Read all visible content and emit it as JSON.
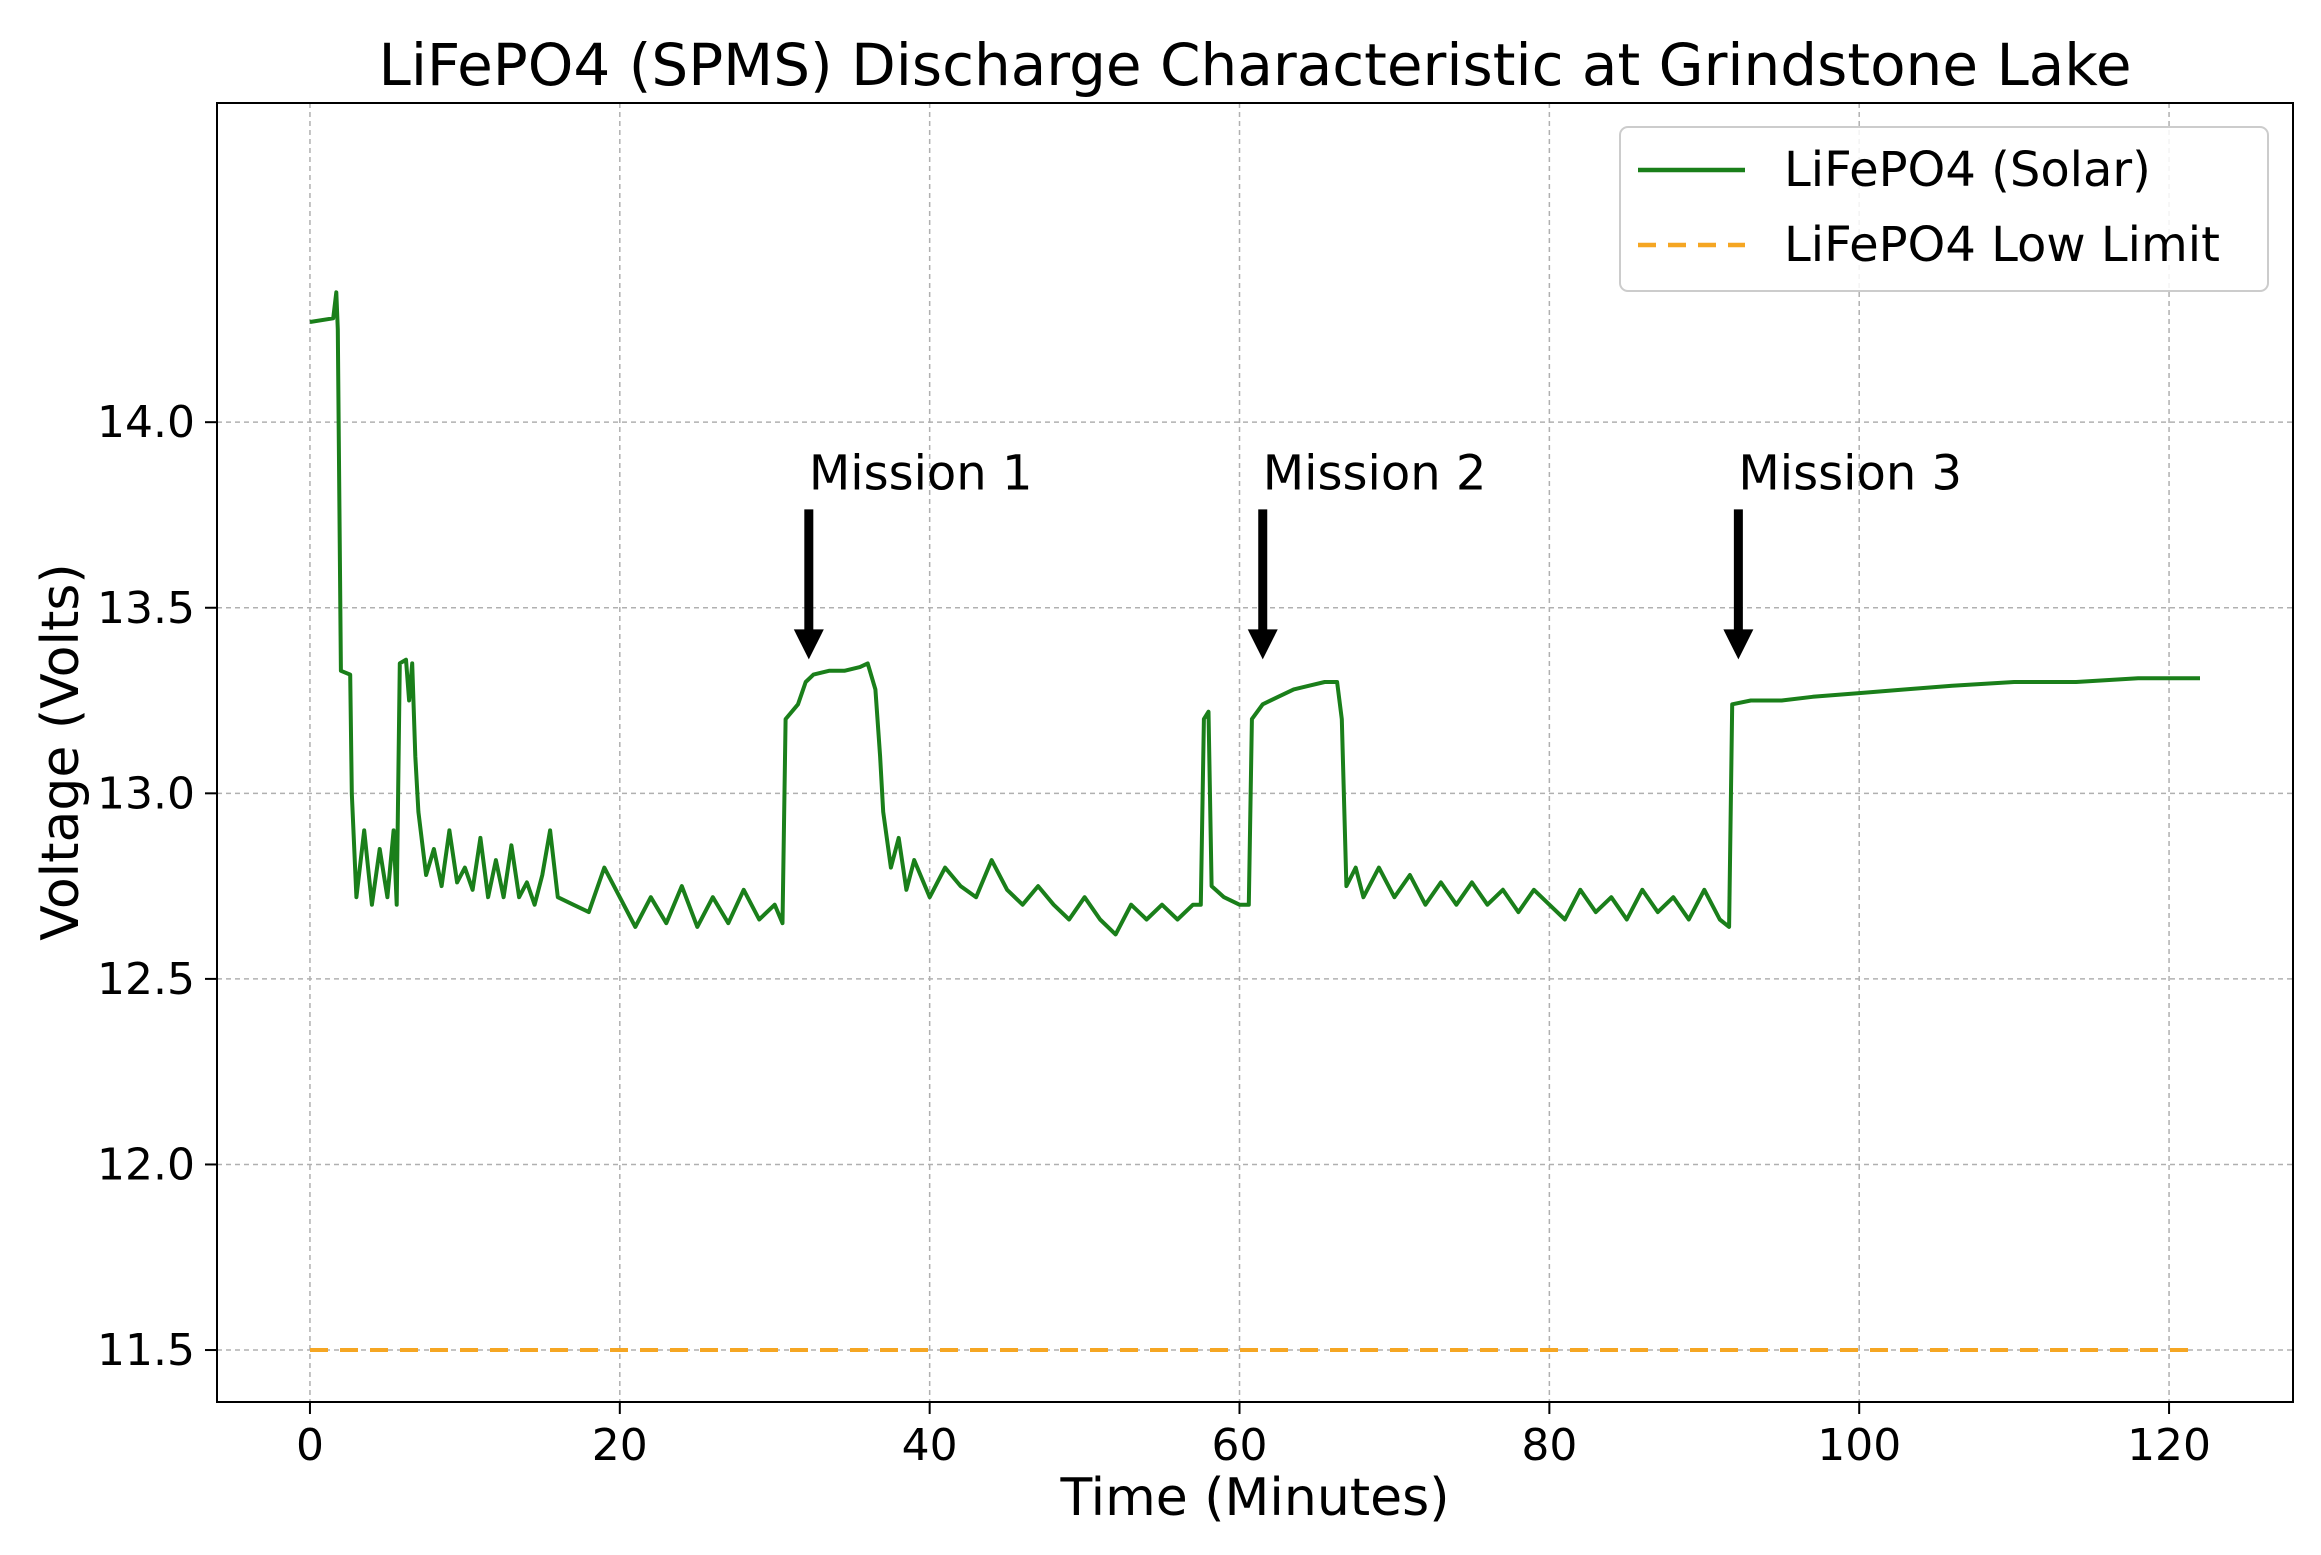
{
  "chart_data": {
    "type": "line",
    "title": "LiFePO4 (SPMS) Discharge Characteristic at Grindstone Lake",
    "xlabel": "Time (Minutes)",
    "ylabel": "Voltage (Volts)",
    "xlim": [
      -6,
      128
    ],
    "ylim": [
      11.36,
      14.86
    ],
    "xticks": [
      0,
      20,
      40,
      60,
      80,
      100,
      120
    ],
    "yticks": [
      11.5,
      12.0,
      12.5,
      13.0,
      13.5,
      14.0
    ],
    "xtick_labels": [
      "0",
      "20",
      "40",
      "60",
      "80",
      "100",
      "120"
    ],
    "ytick_labels": [
      "11.5",
      "12.0",
      "12.5",
      "13.0",
      "13.5",
      "14.0"
    ],
    "grid": true,
    "legend_position": "top-right",
    "series": [
      {
        "name": "LiFePO4 (Solar)",
        "color": "#1a7f1a",
        "style": "solid",
        "points": [
          [
            0.0,
            14.27
          ],
          [
            1.5,
            14.28
          ],
          [
            1.7,
            14.35
          ],
          [
            1.8,
            14.25
          ],
          [
            2.0,
            13.33
          ],
          [
            2.6,
            13.32
          ],
          [
            2.7,
            13.0
          ],
          [
            3.0,
            12.72
          ],
          [
            3.5,
            12.9
          ],
          [
            4.0,
            12.7
          ],
          [
            4.5,
            12.85
          ],
          [
            5.0,
            12.72
          ],
          [
            5.4,
            12.9
          ],
          [
            5.6,
            12.7
          ],
          [
            5.8,
            13.35
          ],
          [
            6.2,
            13.36
          ],
          [
            6.4,
            13.25
          ],
          [
            6.6,
            13.35
          ],
          [
            6.8,
            13.1
          ],
          [
            7.0,
            12.95
          ],
          [
            7.5,
            12.78
          ],
          [
            8.0,
            12.85
          ],
          [
            8.5,
            12.75
          ],
          [
            9.0,
            12.9
          ],
          [
            9.5,
            12.76
          ],
          [
            10.0,
            12.8
          ],
          [
            10.5,
            12.74
          ],
          [
            11.0,
            12.88
          ],
          [
            11.5,
            12.72
          ],
          [
            12.0,
            12.82
          ],
          [
            12.5,
            12.72
          ],
          [
            13.0,
            12.86
          ],
          [
            13.5,
            12.72
          ],
          [
            14.0,
            12.76
          ],
          [
            14.5,
            12.7
          ],
          [
            15.0,
            12.78
          ],
          [
            15.5,
            12.9
          ],
          [
            16.0,
            12.72
          ],
          [
            17.0,
            12.7
          ],
          [
            18.0,
            12.68
          ],
          [
            19.0,
            12.8
          ],
          [
            20.0,
            12.72
          ],
          [
            21.0,
            12.64
          ],
          [
            22.0,
            12.72
          ],
          [
            23.0,
            12.65
          ],
          [
            24.0,
            12.75
          ],
          [
            25.0,
            12.64
          ],
          [
            26.0,
            12.72
          ],
          [
            27.0,
            12.65
          ],
          [
            28.0,
            12.74
          ],
          [
            29.0,
            12.66
          ],
          [
            30.0,
            12.7
          ],
          [
            30.5,
            12.65
          ],
          [
            30.7,
            13.2
          ],
          [
            31.5,
            13.24
          ],
          [
            32.0,
            13.3
          ],
          [
            32.5,
            13.32
          ],
          [
            33.5,
            13.33
          ],
          [
            34.5,
            13.33
          ],
          [
            35.5,
            13.34
          ],
          [
            36.0,
            13.35
          ],
          [
            36.5,
            13.28
          ],
          [
            36.8,
            13.1
          ],
          [
            37.0,
            12.95
          ],
          [
            37.5,
            12.8
          ],
          [
            38.0,
            12.88
          ],
          [
            38.5,
            12.74
          ],
          [
            39.0,
            12.82
          ],
          [
            40.0,
            12.72
          ],
          [
            41.0,
            12.8
          ],
          [
            42.0,
            12.75
          ],
          [
            43.0,
            12.72
          ],
          [
            44.0,
            12.82
          ],
          [
            45.0,
            12.74
          ],
          [
            46.0,
            12.7
          ],
          [
            47.0,
            12.75
          ],
          [
            48.0,
            12.7
          ],
          [
            49.0,
            12.66
          ],
          [
            50.0,
            12.72
          ],
          [
            51.0,
            12.66
          ],
          [
            52.0,
            12.62
          ],
          [
            53.0,
            12.7
          ],
          [
            54.0,
            12.66
          ],
          [
            55.0,
            12.7
          ],
          [
            56.0,
            12.66
          ],
          [
            57.0,
            12.7
          ],
          [
            57.5,
            12.7
          ],
          [
            57.7,
            13.2
          ],
          [
            58.0,
            13.22
          ],
          [
            58.2,
            12.75
          ],
          [
            59.0,
            12.72
          ],
          [
            60.0,
            12.7
          ],
          [
            60.6,
            12.7
          ],
          [
            60.8,
            13.2
          ],
          [
            61.5,
            13.24
          ],
          [
            62.5,
            13.26
          ],
          [
            63.5,
            13.28
          ],
          [
            64.5,
            13.29
          ],
          [
            65.5,
            13.3
          ],
          [
            66.3,
            13.3
          ],
          [
            66.6,
            13.2
          ],
          [
            66.9,
            12.75
          ],
          [
            67.5,
            12.8
          ],
          [
            68.0,
            12.72
          ],
          [
            69.0,
            12.8
          ],
          [
            70.0,
            12.72
          ],
          [
            71.0,
            12.78
          ],
          [
            72.0,
            12.7
          ],
          [
            73.0,
            12.76
          ],
          [
            74.0,
            12.7
          ],
          [
            75.0,
            12.76
          ],
          [
            76.0,
            12.7
          ],
          [
            77.0,
            12.74
          ],
          [
            78.0,
            12.68
          ],
          [
            79.0,
            12.74
          ],
          [
            80.0,
            12.7
          ],
          [
            81.0,
            12.66
          ],
          [
            82.0,
            12.74
          ],
          [
            83.0,
            12.68
          ],
          [
            84.0,
            12.72
          ],
          [
            85.0,
            12.66
          ],
          [
            86.0,
            12.74
          ],
          [
            87.0,
            12.68
          ],
          [
            88.0,
            12.72
          ],
          [
            89.0,
            12.66
          ],
          [
            90.0,
            12.74
          ],
          [
            91.0,
            12.66
          ],
          [
            91.6,
            12.64
          ],
          [
            91.8,
            13.24
          ],
          [
            93.0,
            13.25
          ],
          [
            95.0,
            13.25
          ],
          [
            97.0,
            13.26
          ],
          [
            100.0,
            13.27
          ],
          [
            103.0,
            13.28
          ],
          [
            106.0,
            13.29
          ],
          [
            110.0,
            13.3
          ],
          [
            114.0,
            13.3
          ],
          [
            118.0,
            13.31
          ],
          [
            122.0,
            13.31
          ]
        ]
      },
      {
        "name": "LiFePO4 Low Limit",
        "color": "#f5a623",
        "style": "dashed",
        "points": [
          [
            0,
            11.5
          ],
          [
            122,
            11.5
          ]
        ]
      }
    ],
    "annotations": [
      {
        "text": "Mission 1",
        "x": 32.2,
        "y_tip": 13.35
      },
      {
        "text": "Mission 2",
        "x": 61.5,
        "y_tip": 13.35
      },
      {
        "text": "Mission 3",
        "x": 92.2,
        "y_tip": 13.35
      }
    ]
  }
}
